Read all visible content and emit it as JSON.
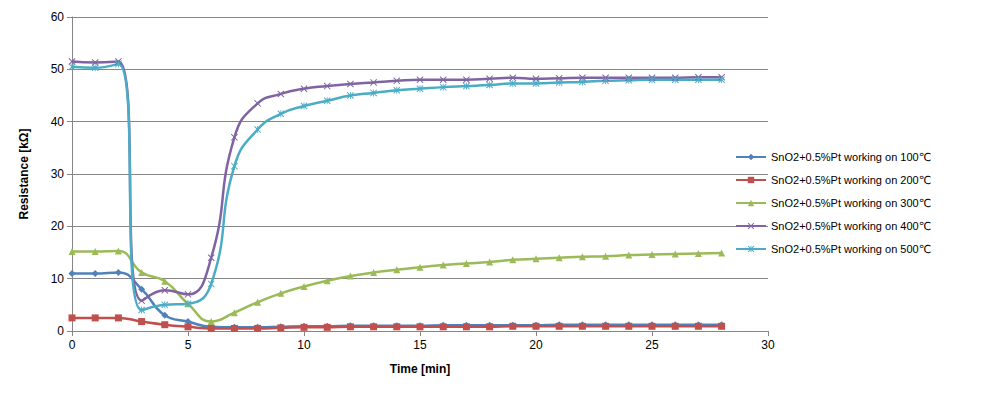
{
  "chart_data": {
    "type": "line",
    "x_label": "Time [min]",
    "y_label": "Resistance [kΩ]",
    "x": [
      0,
      1,
      2,
      3,
      4,
      5,
      6,
      7,
      8,
      9,
      10,
      11,
      12,
      13,
      14,
      15,
      16,
      17,
      18,
      19,
      20,
      21,
      22,
      23,
      24,
      25,
      26,
      27,
      28
    ],
    "series": [
      {
        "name": "SnO2+0.5%Pt working on 100℃",
        "color": "#4F81BD",
        "marker": "diamond",
        "values": [
          11,
          11,
          11.2,
          8,
          3,
          1.8,
          0.8,
          0.7,
          0.7,
          0.8,
          0.9,
          0.9,
          1,
          1,
          1,
          1,
          1.1,
          1.1,
          1.1,
          1.1,
          1.1,
          1.2,
          1.2,
          1.2,
          1.2,
          1.2,
          1.2,
          1.2,
          1.2
        ]
      },
      {
        "name": "SnO2+0.5%Pt working on 200℃",
        "color": "#C0504D",
        "marker": "square",
        "values": [
          2.5,
          2.5,
          2.5,
          1.8,
          1.2,
          0.8,
          0.5,
          0.5,
          0.5,
          0.6,
          0.7,
          0.7,
          0.8,
          0.8,
          0.8,
          0.8,
          0.8,
          0.8,
          0.8,
          0.9,
          0.9,
          0.9,
          0.9,
          0.9,
          0.9,
          0.9,
          0.9,
          0.9,
          0.9
        ]
      },
      {
        "name": "SnO2+0.5%Pt working on 300℃",
        "color": "#9BBB59",
        "marker": "triangle",
        "values": [
          15.2,
          15.2,
          15.3,
          11.2,
          9.5,
          5.2,
          1.8,
          3.5,
          5.5,
          7.2,
          8.5,
          9.6,
          10.5,
          11.2,
          11.7,
          12.2,
          12.6,
          12.9,
          13.2,
          13.6,
          13.8,
          14,
          14.2,
          14.3,
          14.5,
          14.6,
          14.7,
          14.8,
          14.9
        ]
      },
      {
        "name": "SnO2+0.5%Pt working on 400℃",
        "color": "#8064A2",
        "marker": "x",
        "values": [
          51.5,
          51.3,
          51.5,
          5.8,
          7.8,
          7,
          14,
          37,
          43.5,
          45.3,
          46.3,
          46.8,
          47.2,
          47.5,
          47.8,
          48,
          48,
          48,
          48.2,
          48.4,
          48.2,
          48.3,
          48.4,
          48.4,
          48.4,
          48.4,
          48.4,
          48.5,
          48.5
        ]
      },
      {
        "name": "SnO2+0.5%Pt working on 500℃",
        "color": "#4BACC6",
        "marker": "star",
        "values": [
          50.5,
          50.3,
          51,
          4,
          5,
          5.2,
          9,
          31.5,
          38.5,
          41.5,
          43,
          44,
          45,
          45.5,
          46,
          46.3,
          46.6,
          46.8,
          47,
          47.3,
          47.3,
          47.5,
          47.6,
          47.8,
          47.9,
          48,
          48,
          48,
          48
        ]
      }
    ],
    "xlim": [
      0,
      30
    ],
    "xticks": [
      0,
      5,
      10,
      15,
      20,
      25,
      30
    ],
    "ylim": [
      0,
      60
    ],
    "yticks": [
      0,
      10,
      20,
      30,
      40,
      50,
      60
    ],
    "grid": true,
    "legend": "right"
  }
}
